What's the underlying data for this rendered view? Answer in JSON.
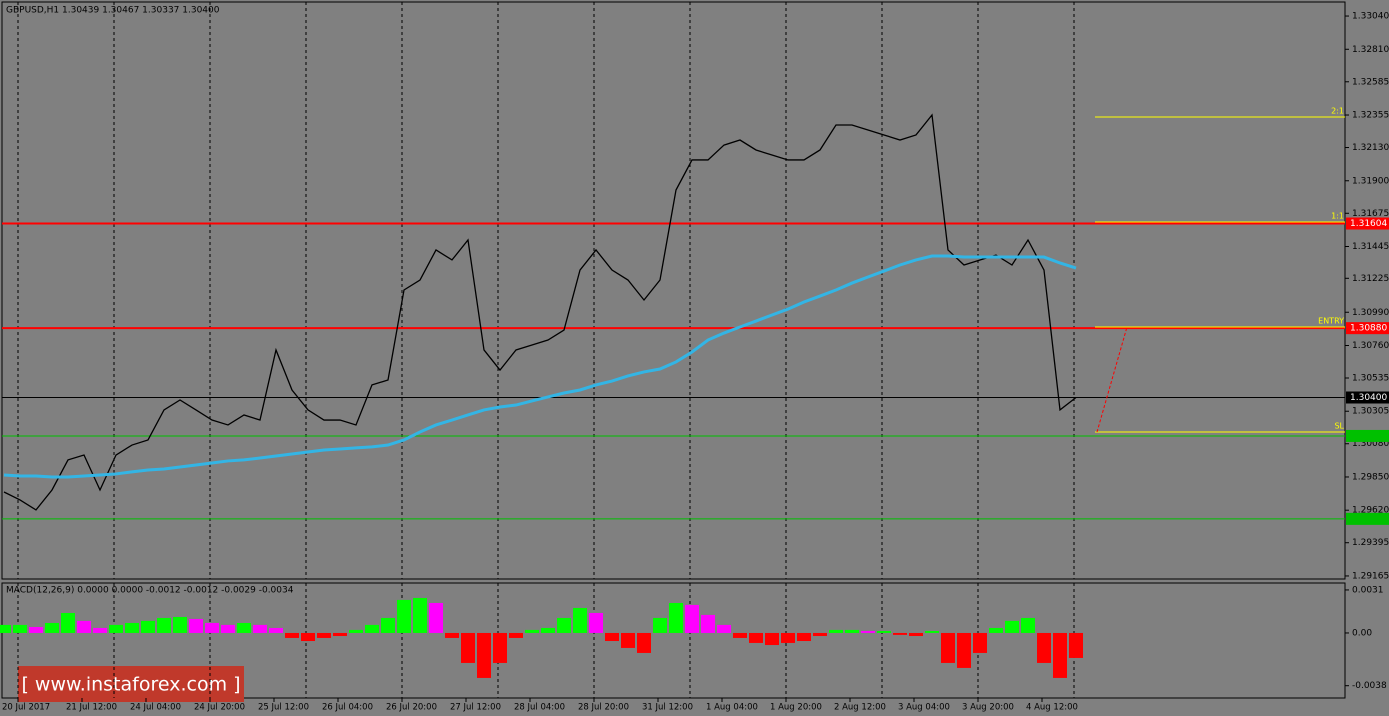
{
  "title": "GBPUSD,H1  1.30439 1.30467 1.30337 1.30400",
  "chart_data": [
    {
      "type": "line",
      "series": [
        {
          "color": "#000000",
          "values": [
            1.29746,
            1.29691,
            1.29622,
            1.2976,
            1.29968,
            1.30002,
            1.2976,
            1.30002,
            1.30071,
            1.30106,
            1.30314,
            1.30383,
            1.30314,
            1.30244,
            1.3021,
            1.30279,
            1.30244,
            1.30729,
            1.30452,
            1.30314,
            1.30244,
            1.30244,
            1.3021,
            1.30487,
            1.30521,
            1.31144,
            1.31213,
            1.31421,
            1.31352,
            1.3149,
            1.30729,
            1.3059,
            1.30729,
            1.30763,
            1.30798,
            1.30867,
            1.31282,
            1.31421,
            1.31282,
            1.31213,
            1.31075,
            1.31213,
            1.31836,
            1.32044,
            1.32044,
            1.32147,
            1.32182,
            1.32113,
            1.32078,
            1.32044,
            1.32044,
            1.32113,
            1.32286,
            1.32286,
            1.32251,
            1.32217,
            1.32182,
            1.32217,
            1.32355,
            1.31421,
            1.31317,
            1.31352,
            1.31386,
            1.31317,
            1.3149,
            1.31282,
            1.30314,
            1.304
          ]
        },
        {
          "color": "#33b5e5",
          "values": [
            1.29864,
            1.29857,
            1.29857,
            1.2985,
            1.2985,
            1.29857,
            1.29864,
            1.29871,
            1.29885,
            1.29898,
            1.29905,
            1.29919,
            1.29933,
            1.29947,
            1.29961,
            1.29968,
            1.29981,
            1.29995,
            1.30009,
            1.30023,
            1.30037,
            1.30044,
            1.30051,
            1.30058,
            1.30071,
            1.30106,
            1.30161,
            1.3021,
            1.30244,
            1.30279,
            1.30314,
            1.30334,
            1.30348,
            1.30376,
            1.30404,
            1.30431,
            1.30452,
            1.30487,
            1.30514,
            1.30549,
            1.30577,
            1.30597,
            1.30646,
            1.30715,
            1.30798,
            1.30846,
            1.30888,
            1.30929,
            1.30971,
            1.31012,
            1.31061,
            1.31102,
            1.31144,
            1.31192,
            1.31234,
            1.31275,
            1.31317,
            1.31352,
            1.31379,
            1.31379,
            1.31372,
            1.31372,
            1.31372,
            1.31372,
            1.31372,
            1.31372,
            1.31331,
            1.31296
          ]
        }
      ],
      "ylim": [
        1.29137,
        1.33151
      ],
      "yticks": [
        {
          "value": 1.3304,
          "label": "1.33040"
        },
        {
          "value": 1.3281,
          "label": "1.32810"
        },
        1.32585,
        1.32355,
        {
          "value": 1.3213,
          "label": "1.32130"
        },
        {
          "value": 1.319,
          "label": "1.31900"
        },
        1.31675,
        1.31445,
        1.31225,
        {
          "value": 1.3099,
          "label": "1.30990"
        },
        {
          "value": 1.3076,
          "label": "1.30760"
        },
        1.30535,
        1.30305,
        {
          "value": 1.3008,
          "label": "1.30080"
        },
        {
          "value": 1.2985,
          "label": "1.29850"
        },
        {
          "value": 1.2962,
          "label": "1.29620"
        },
        1.29395,
        1.29165
      ],
      "levels": [
        {
          "value": 1.31604,
          "label": "1.31604",
          "color": "#ff0000"
        },
        {
          "value": 1.3088,
          "label": "1.30880",
          "color": "#ff0000"
        },
        {
          "value": 1.304,
          "label": "1.30400",
          "color": "#000000"
        },
        {
          "value": 1.30134,
          "color": "#00c000"
        },
        {
          "value": 1.2956,
          "color": "#00c000"
        }
      ],
      "targets": [
        {
          "label": "2:1",
          "value": 1.32341
        },
        {
          "label": "1:1",
          "value": 1.31615
        },
        {
          "label": "ENTRY",
          "value": 1.30888
        },
        {
          "label": "SL",
          "value": 1.30161
        }
      ],
      "x_labels": [
        "20 Jul 2017",
        "21 Jul 12:00",
        "24 Jul 04:00",
        "24 Jul 20:00",
        "25 Jul 12:00",
        "26 Jul 04:00",
        "26 Jul 20:00",
        "27 Jul 12:00",
        "28 Jul 04:00",
        "28 Jul 20:00",
        "31 Jul 12:00",
        "1 Aug 04:00",
        "1 Aug 20:00",
        "2 Aug 12:00",
        "3 Aug 04:00",
        "3 Aug 20:00",
        "4 Aug 12:00"
      ]
    },
    {
      "type": "bar",
      "title": "MACD(12,26,9) 0.0000 0.0000 -0.0012 -0.0012 -0.0029 -0.0034",
      "up_color": "#00ff00",
      "fall_color": "#ff00ff",
      "down_color": "#ff0000",
      "values": [
        0.00058,
        0.00058,
        0.00043,
        0.00072,
        0.00144,
        0.00087,
        0.00036,
        0.00058,
        0.00072,
        0.00087,
        0.00108,
        0.00115,
        0.00101,
        0.00072,
        0.00058,
        0.00072,
        0.00058,
        0.00036,
        -0.00036,
        -0.00058,
        -0.00036,
        -0.00022,
        0.00022,
        0.00058,
        0.00108,
        0.00238,
        0.00252,
        0.00216,
        -0.00036,
        -0.00216,
        -0.00324,
        -0.00216,
        -0.00036,
        0.00022,
        0.00036,
        0.00108,
        0.0018,
        0.00144,
        -0.00058,
        -0.00108,
        -0.00144,
        0.00108,
        0.00216,
        0.00202,
        0.0013,
        0.00058,
        -0.00036,
        -0.00072,
        -0.00087,
        -0.00072,
        -0.00058,
        -0.00022,
        0.00022,
        0.00022,
        0.00014,
        0.00014,
        -0.00014,
        -0.00022,
        0.00014,
        -0.00216,
        -0.00252,
        -0.00144,
        0.00036,
        0.00087,
        0.00108,
        -0.00216,
        -0.00324,
        -0.0018
      ],
      "ylim": [
        -0.00483,
        0.0036
      ],
      "yticks": [
        0.0031,
        {
          "value": 0,
          "label": "0.00"
        },
        -0.0038
      ]
    }
  ],
  "watermark": "[ www.instaforex.com ]"
}
